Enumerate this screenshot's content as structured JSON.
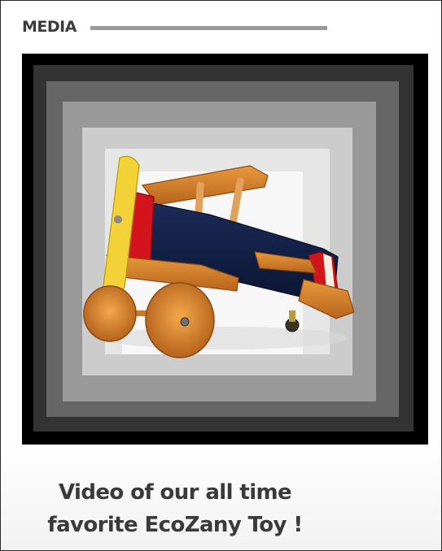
{
  "header": {
    "title": "MEDIA"
  },
  "media": {
    "image_subject": "wooden-toy-biplane"
  },
  "caption": {
    "line1": "Video of our all time",
    "line2": "favorite EcoZany Toy !"
  },
  "colors": {
    "heading_text": "#3b3b3b",
    "rule": "#9a9a9a",
    "frame": "#000000"
  }
}
